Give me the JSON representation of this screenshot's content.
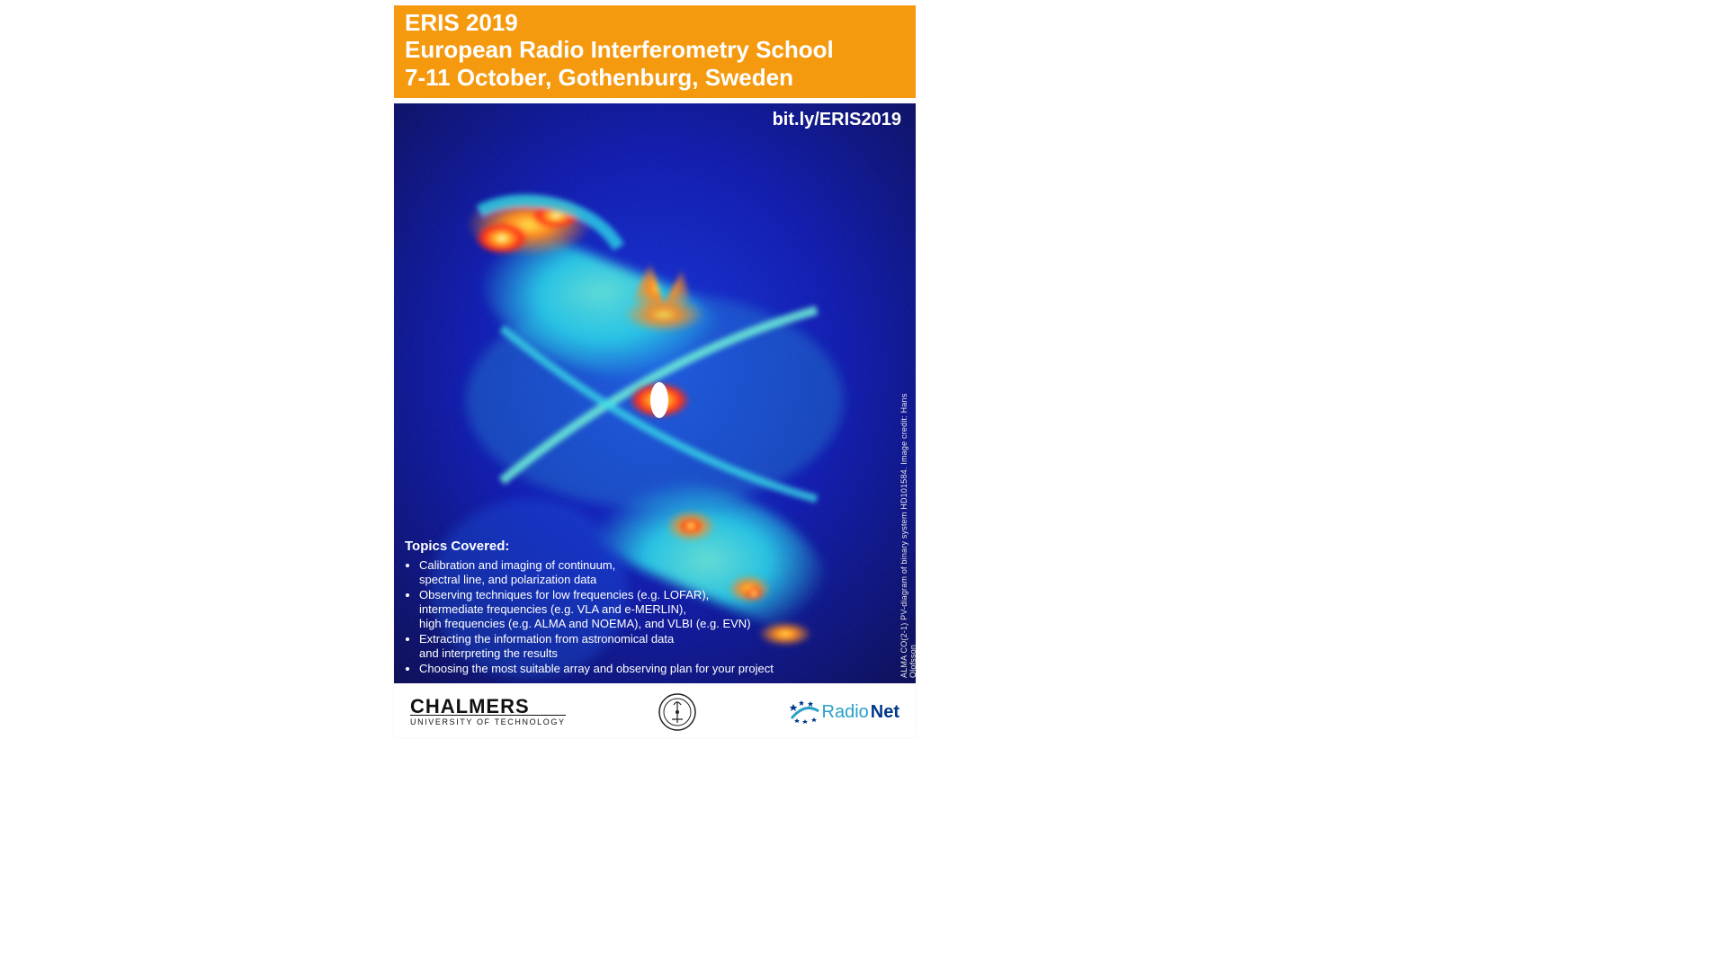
{
  "colors": {
    "header_bg": "#f59a0f",
    "header_text": "#ffffff",
    "page_bg": "#ffffff",
    "astro_colormap": {
      "bg_deep": "#03033a",
      "bg_mid": "#0914a8",
      "low": "#1130d8",
      "cyan": "#2ad4e8",
      "green": "#6ef08a",
      "yellow": "#ffe24a",
      "orange": "#ff8a1f",
      "red": "#ff2a1a",
      "white_core": "#ffffff"
    },
    "radionet_blue": "#2aa0c8",
    "radionet_accent": "#003a8c",
    "seal_stroke": "#222222"
  },
  "header": {
    "title": "ERIS 2019",
    "subtitle1": "European Radio Interferometry School",
    "subtitle2": "7-11 October, Gothenburg, Sweden"
  },
  "link": "bit.ly/ERIS2019",
  "side_credit": "ALMA CO(2-1) PV-diagram of binary system HD101584. Image credit: Hans Olofsson",
  "topics": {
    "heading": "Topics Covered:",
    "items": [
      "Calibration and imaging of continuum,<br>spectral line, and polarization data",
      "Observing techniques for low frequencies (e.g. LOFAR),<br>intermediate frequencies (e.g. VLA and e-MERLIN),<br>high frequencies (e.g. ALMA and NOEMA), and VLBI (e.g. EVN)",
      "Extracting the information from astronomical data<br>and interpreting the results",
      "Choosing the most suitable array and observing plan for your project"
    ]
  },
  "footer": {
    "chalmers_big": "CHALMERS",
    "chalmers_sub": "UNIVERSITY OF TECHNOLOGY",
    "radionet_text": "Radio",
    "radionet_accent": "Net"
  }
}
